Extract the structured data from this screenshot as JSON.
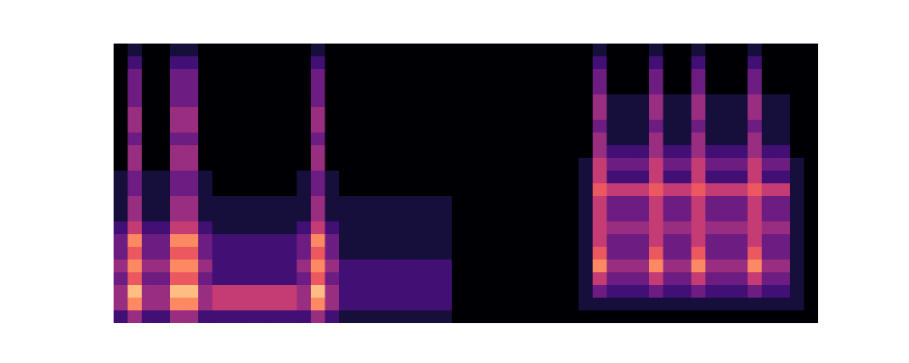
{
  "chart_data": {
    "type": "heatmap",
    "tick_labels": false,
    "values": [
      [
        0,
        1,
        0,
        0,
        1,
        1,
        0,
        0,
        0,
        0,
        0,
        0,
        0,
        0,
        1,
        0,
        0,
        0,
        0,
        0,
        0,
        0,
        0,
        0,
        0,
        0,
        0,
        0,
        0,
        0,
        0,
        0,
        0,
        0,
        1,
        0,
        0,
        0,
        1,
        0,
        0,
        1,
        0,
        0,
        0,
        1,
        0,
        0,
        0,
        0
      ],
      [
        0,
        2,
        0,
        0,
        2,
        2,
        0,
        0,
        0,
        0,
        0,
        0,
        0,
        0,
        2,
        0,
        0,
        0,
        0,
        0,
        0,
        0,
        0,
        0,
        0,
        0,
        0,
        0,
        0,
        0,
        0,
        0,
        0,
        0,
        2,
        0,
        0,
        0,
        2,
        0,
        0,
        2,
        0,
        0,
        0,
        2,
        0,
        0,
        0,
        0
      ],
      [
        0,
        3,
        0,
        0,
        3,
        3,
        0,
        0,
        0,
        0,
        0,
        0,
        0,
        0,
        3,
        0,
        0,
        0,
        0,
        0,
        0,
        0,
        0,
        0,
        0,
        0,
        0,
        0,
        0,
        0,
        0,
        0,
        0,
        0,
        3,
        0,
        0,
        0,
        3,
        0,
        0,
        3,
        0,
        0,
        0,
        3,
        0,
        0,
        0,
        0
      ],
      [
        0,
        3,
        0,
        0,
        3,
        3,
        0,
        0,
        0,
        0,
        0,
        0,
        0,
        0,
        3,
        0,
        0,
        0,
        0,
        0,
        0,
        0,
        0,
        0,
        0,
        0,
        0,
        0,
        0,
        0,
        0,
        0,
        0,
        0,
        3,
        0,
        0,
        0,
        3,
        0,
        0,
        3,
        0,
        0,
        0,
        3,
        0,
        0,
        0,
        0
      ],
      [
        0,
        3,
        0,
        0,
        3,
        3,
        0,
        0,
        0,
        0,
        0,
        0,
        0,
        0,
        3,
        0,
        0,
        0,
        0,
        0,
        0,
        0,
        0,
        0,
        0,
        0,
        0,
        0,
        0,
        0,
        0,
        0,
        0,
        0,
        4,
        1,
        1,
        1,
        4,
        1,
        1,
        4,
        1,
        1,
        1,
        4,
        1,
        1,
        0,
        0
      ],
      [
        0,
        4,
        0,
        0,
        4,
        4,
        0,
        0,
        0,
        0,
        0,
        0,
        0,
        0,
        4,
        0,
        0,
        0,
        0,
        0,
        0,
        0,
        0,
        0,
        0,
        0,
        0,
        0,
        0,
        0,
        0,
        0,
        0,
        0,
        4,
        1,
        1,
        1,
        4,
        1,
        1,
        4,
        1,
        1,
        1,
        4,
        1,
        1,
        0,
        0
      ],
      [
        0,
        4,
        0,
        0,
        4,
        4,
        0,
        0,
        0,
        0,
        0,
        0,
        0,
        0,
        4,
        0,
        0,
        0,
        0,
        0,
        0,
        0,
        0,
        0,
        0,
        0,
        0,
        0,
        0,
        0,
        0,
        0,
        0,
        0,
        3,
        1,
        1,
        1,
        3,
        1,
        1,
        3,
        1,
        1,
        1,
        3,
        1,
        1,
        0,
        0
      ],
      [
        0,
        3,
        0,
        0,
        3,
        3,
        0,
        0,
        0,
        0,
        0,
        0,
        0,
        0,
        3,
        0,
        0,
        0,
        0,
        0,
        0,
        0,
        0,
        0,
        0,
        0,
        0,
        0,
        0,
        0,
        0,
        0,
        0,
        0,
        4,
        1,
        1,
        1,
        4,
        1,
        1,
        4,
        1,
        1,
        1,
        4,
        1,
        1,
        0,
        0
      ],
      [
        0,
        4,
        0,
        0,
        4,
        4,
        0,
        0,
        0,
        0,
        0,
        0,
        0,
        0,
        4,
        0,
        0,
        0,
        0,
        0,
        0,
        0,
        0,
        0,
        0,
        0,
        0,
        0,
        0,
        0,
        0,
        0,
        0,
        0,
        4,
        2,
        2,
        2,
        4,
        2,
        2,
        4,
        2,
        2,
        2,
        4,
        2,
        2,
        0,
        0
      ],
      [
        0,
        4,
        0,
        0,
        4,
        4,
        0,
        0,
        0,
        0,
        0,
        0,
        0,
        0,
        4,
        0,
        0,
        0,
        0,
        0,
        0,
        0,
        0,
        0,
        0,
        0,
        0,
        0,
        0,
        0,
        0,
        0,
        0,
        1,
        5,
        3,
        3,
        3,
        5,
        3,
        3,
        5,
        3,
        3,
        3,
        5,
        3,
        3,
        1,
        0
      ],
      [
        1,
        3,
        1,
        1,
        3,
        3,
        1,
        0,
        0,
        0,
        0,
        0,
        0,
        1,
        3,
        1,
        0,
        0,
        0,
        0,
        0,
        0,
        0,
        0,
        0,
        0,
        0,
        0,
        0,
        0,
        0,
        0,
        0,
        1,
        5,
        2,
        2,
        2,
        5,
        2,
        2,
        5,
        2,
        2,
        2,
        5,
        2,
        2,
        1,
        0
      ],
      [
        1,
        3,
        1,
        1,
        3,
        3,
        1,
        0,
        0,
        0,
        0,
        0,
        0,
        1,
        3,
        1,
        0,
        0,
        0,
        0,
        0,
        0,
        0,
        0,
        0,
        0,
        0,
        0,
        0,
        0,
        0,
        0,
        0,
        1,
        6,
        5,
        5,
        5,
        6,
        5,
        5,
        6,
        5,
        5,
        5,
        6,
        5,
        5,
        1,
        0
      ],
      [
        1,
        4,
        1,
        1,
        4,
        4,
        1,
        1,
        1,
        1,
        1,
        1,
        1,
        1,
        4,
        1,
        1,
        1,
        1,
        1,
        1,
        1,
        1,
        1,
        0,
        0,
        0,
        0,
        0,
        0,
        0,
        0,
        0,
        1,
        5,
        3,
        3,
        3,
        5,
        3,
        3,
        5,
        3,
        3,
        3,
        5,
        3,
        3,
        1,
        0
      ],
      [
        1,
        4,
        1,
        1,
        4,
        4,
        1,
        1,
        1,
        1,
        1,
        1,
        1,
        1,
        4,
        1,
        1,
        1,
        1,
        1,
        1,
        1,
        1,
        1,
        0,
        0,
        0,
        0,
        0,
        0,
        0,
        0,
        0,
        1,
        5,
        3,
        3,
        3,
        5,
        3,
        3,
        5,
        3,
        3,
        3,
        5,
        3,
        3,
        1,
        0
      ],
      [
        2,
        5,
        2,
        2,
        5,
        5,
        2,
        1,
        1,
        1,
        1,
        1,
        1,
        2,
        5,
        2,
        1,
        1,
        1,
        1,
        1,
        1,
        1,
        1,
        0,
        0,
        0,
        0,
        0,
        0,
        0,
        0,
        0,
        1,
        5,
        4,
        4,
        4,
        5,
        4,
        4,
        5,
        4,
        4,
        4,
        5,
        4,
        4,
        1,
        0
      ],
      [
        3,
        7,
        3,
        3,
        7,
        7,
        3,
        2,
        2,
        2,
        2,
        2,
        2,
        3,
        7,
        3,
        1,
        1,
        1,
        1,
        1,
        1,
        1,
        1,
        0,
        0,
        0,
        0,
        0,
        0,
        0,
        0,
        0,
        1,
        5,
        3,
        3,
        3,
        5,
        3,
        3,
        5,
        3,
        3,
        3,
        5,
        3,
        3,
        1,
        0
      ],
      [
        3,
        6,
        3,
        3,
        6,
        6,
        3,
        2,
        2,
        2,
        2,
        2,
        2,
        3,
        6,
        3,
        1,
        1,
        1,
        1,
        1,
        1,
        1,
        1,
        0,
        0,
        0,
        0,
        0,
        0,
        0,
        0,
        0,
        1,
        6,
        3,
        3,
        3,
        6,
        3,
        3,
        6,
        3,
        3,
        3,
        6,
        3,
        3,
        1,
        0
      ],
      [
        4,
        7,
        4,
        4,
        7,
        7,
        4,
        2,
        2,
        2,
        2,
        2,
        2,
        4,
        7,
        4,
        2,
        2,
        2,
        2,
        2,
        2,
        2,
        2,
        0,
        0,
        0,
        0,
        0,
        0,
        0,
        0,
        0,
        1,
        7,
        4,
        4,
        4,
        7,
        4,
        4,
        7,
        4,
        4,
        4,
        7,
        4,
        4,
        1,
        0
      ],
      [
        3,
        6,
        3,
        3,
        6,
        6,
        3,
        2,
        2,
        2,
        2,
        2,
        2,
        3,
        6,
        3,
        2,
        2,
        2,
        2,
        2,
        2,
        2,
        2,
        0,
        0,
        0,
        0,
        0,
        0,
        0,
        0,
        0,
        1,
        5,
        3,
        3,
        3,
        5,
        3,
        3,
        5,
        3,
        3,
        3,
        5,
        3,
        3,
        1,
        0
      ],
      [
        4,
        8,
        4,
        4,
        8,
        8,
        4,
        5,
        5,
        5,
        5,
        5,
        5,
        4,
        8,
        4,
        2,
        2,
        2,
        2,
        2,
        2,
        2,
        2,
        0,
        0,
        0,
        0,
        0,
        0,
        0,
        0,
        0,
        1,
        3,
        2,
        2,
        2,
        3,
        2,
        2,
        3,
        2,
        2,
        2,
        3,
        2,
        2,
        1,
        0
      ],
      [
        4,
        7,
        4,
        4,
        7,
        7,
        4,
        5,
        5,
        5,
        5,
        5,
        5,
        4,
        7,
        4,
        2,
        2,
        2,
        2,
        2,
        2,
        2,
        2,
        0,
        0,
        0,
        0,
        0,
        0,
        0,
        0,
        0,
        1,
        1,
        1,
        1,
        1,
        1,
        1,
        1,
        1,
        1,
        1,
        1,
        1,
        1,
        1,
        1,
        0
      ],
      [
        2,
        4,
        2,
        2,
        4,
        4,
        2,
        2,
        2,
        2,
        2,
        2,
        2,
        2,
        4,
        2,
        1,
        1,
        1,
        1,
        1,
        1,
        1,
        1,
        0,
        0,
        0,
        0,
        0,
        0,
        0,
        0,
        0,
        0,
        0,
        0,
        0,
        0,
        0,
        0,
        0,
        0,
        0,
        0,
        0,
        0,
        0,
        0,
        0,
        0
      ]
    ]
  }
}
